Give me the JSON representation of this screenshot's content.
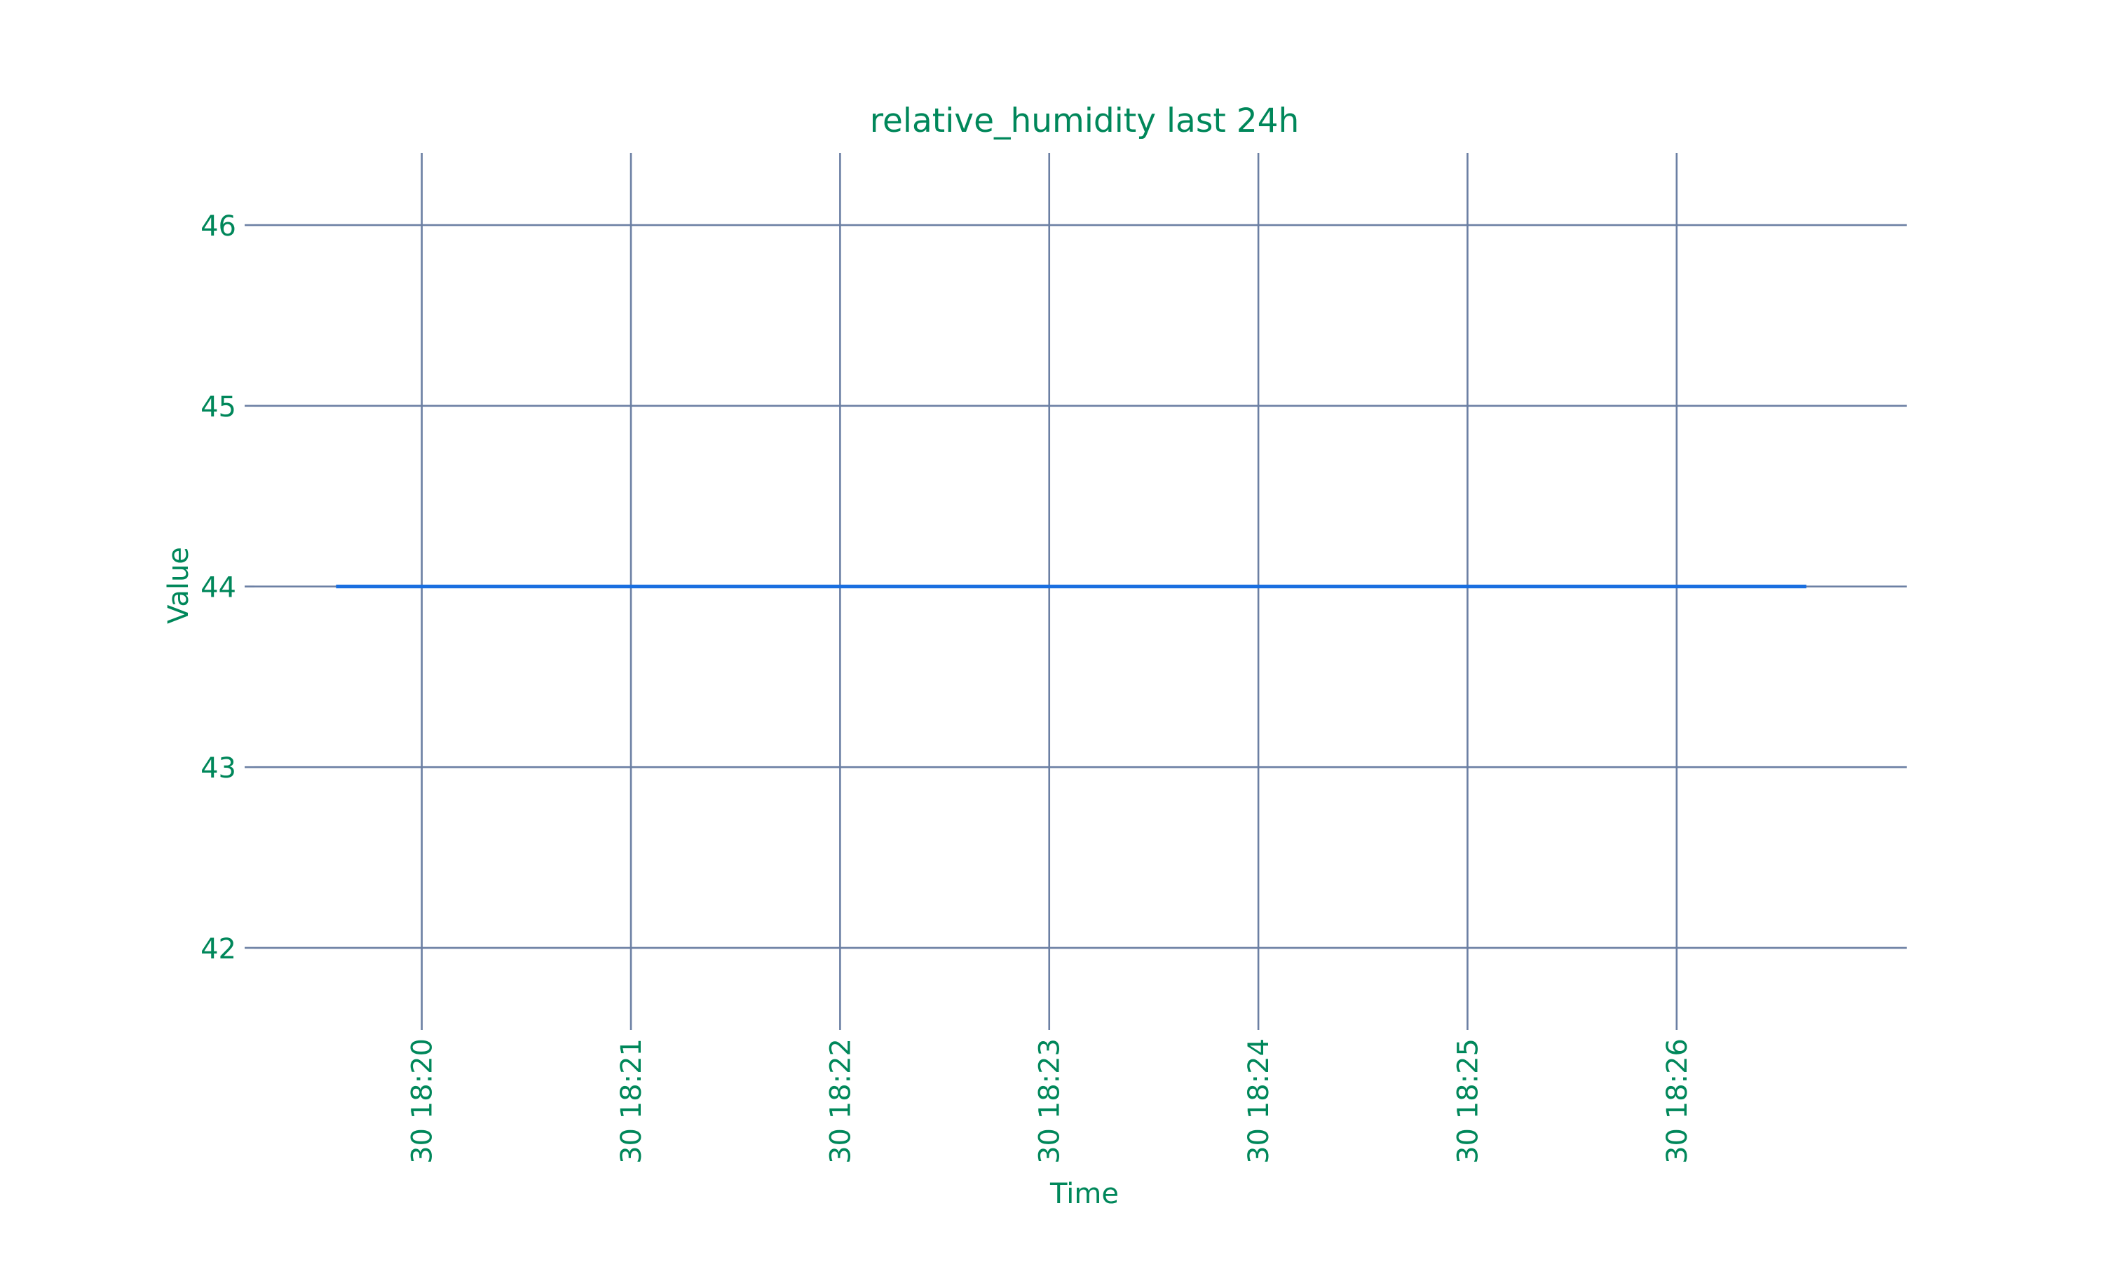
{
  "chart_data": {
    "type": "line",
    "title": "relative_humidity last 24h",
    "xlabel": "Time",
    "ylabel": "Value",
    "x_tick_labels": [
      "30 18:20",
      "30 18:21",
      "30 18:22",
      "30 18:23",
      "30 18:24",
      "30 18:25",
      "30 18:26"
    ],
    "x_ticks_minutes": [
      0,
      1,
      2,
      3,
      4,
      5,
      6
    ],
    "y_ticks": [
      42,
      43,
      44,
      45,
      46
    ],
    "ylim": [
      41.6,
      46.4
    ],
    "xlim_minutes": [
      -0.8,
      7.1
    ],
    "series": [
      {
        "x_minutes": [
          -0.41,
          6.62
        ],
        "values": [
          44,
          44
        ],
        "color": "#1a6fe0"
      }
    ],
    "grid": true,
    "text_color": "#00875a",
    "grid_color": "#6b7fa3"
  }
}
